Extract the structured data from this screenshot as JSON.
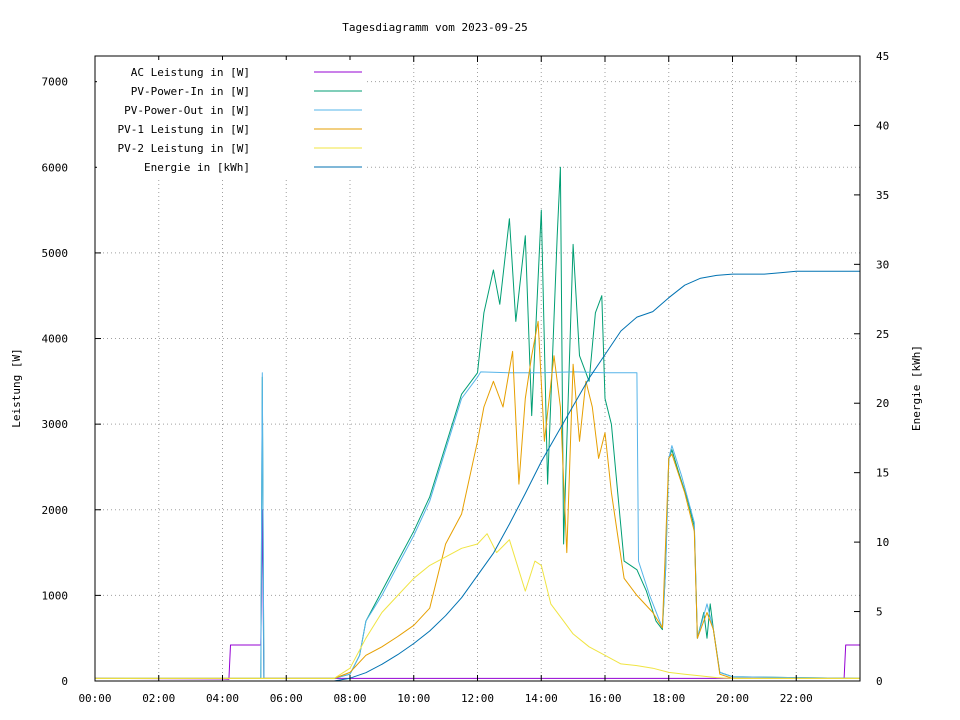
{
  "chart_data": {
    "type": "line",
    "title": "Tagesdiagramm vom 2023-09-25",
    "ylabel": "Leistung [W]",
    "y2label": "Energie [kWh]",
    "xlim": [
      0,
      24
    ],
    "ylim": [
      0,
      7300
    ],
    "y2lim": [
      0,
      45
    ],
    "x_ticks": [
      {
        "v": 0,
        "label": "00:00"
      },
      {
        "v": 2,
        "label": "02:00"
      },
      {
        "v": 4,
        "label": "04:00"
      },
      {
        "v": 6,
        "label": "06:00"
      },
      {
        "v": 8,
        "label": "08:00"
      },
      {
        "v": 10,
        "label": "10:00"
      },
      {
        "v": 12,
        "label": "12:00"
      },
      {
        "v": 14,
        "label": "14:00"
      },
      {
        "v": 16,
        "label": "16:00"
      },
      {
        "v": 18,
        "label": "18:00"
      },
      {
        "v": 20,
        "label": "20:00"
      },
      {
        "v": 22,
        "label": "22:00"
      }
    ],
    "y_ticks": [
      {
        "v": 0,
        "label": "0"
      },
      {
        "v": 1000,
        "label": "1000"
      },
      {
        "v": 2000,
        "label": "2000"
      },
      {
        "v": 3000,
        "label": "3000"
      },
      {
        "v": 4000,
        "label": "4000"
      },
      {
        "v": 5000,
        "label": "5000"
      },
      {
        "v": 6000,
        "label": "6000"
      },
      {
        "v": 7000,
        "label": "7000"
      }
    ],
    "y2_ticks": [
      {
        "v": 0,
        "label": "0"
      },
      {
        "v": 5,
        "label": "5"
      },
      {
        "v": 10,
        "label": "10"
      },
      {
        "v": 15,
        "label": "15"
      },
      {
        "v": 20,
        "label": "20"
      },
      {
        "v": 25,
        "label": "25"
      },
      {
        "v": 30,
        "label": "30"
      },
      {
        "v": 35,
        "label": "35"
      },
      {
        "v": 40,
        "label": "40"
      },
      {
        "v": 45,
        "label": "45"
      }
    ],
    "grid": true,
    "legend_position": "top-left",
    "series": [
      {
        "name": "AC Leistung in [W]",
        "color": "#9400d3",
        "axis": "y",
        "points": [
          [
            0,
            30
          ],
          [
            2,
            28
          ],
          [
            4,
            25
          ],
          [
            4.2,
            20
          ],
          [
            4.25,
            420
          ],
          [
            5.2,
            420
          ],
          [
            5.25,
            2000
          ],
          [
            5.3,
            30
          ],
          [
            7.5,
            30
          ],
          [
            8,
            30
          ],
          [
            23.5,
            30
          ],
          [
            23.55,
            420
          ],
          [
            24,
            420
          ]
        ]
      },
      {
        "name": "PV-Power-In in [W]",
        "color": "#009e73",
        "axis": "y",
        "points": [
          [
            0,
            30
          ],
          [
            5.2,
            30
          ],
          [
            5.25,
            3550
          ],
          [
            5.3,
            30
          ],
          [
            7.5,
            30
          ],
          [
            8,
            80
          ],
          [
            8.3,
            300
          ],
          [
            8.5,
            700
          ],
          [
            9,
            1050
          ],
          [
            9.5,
            1400
          ],
          [
            10,
            1750
          ],
          [
            10.5,
            2150
          ],
          [
            11,
            2750
          ],
          [
            11.5,
            3350
          ],
          [
            12,
            3600
          ],
          [
            12.2,
            4300
          ],
          [
            12.5,
            4800
          ],
          [
            12.7,
            4400
          ],
          [
            13,
            5400
          ],
          [
            13.2,
            4200
          ],
          [
            13.5,
            5200
          ],
          [
            13.7,
            3100
          ],
          [
            14,
            5500
          ],
          [
            14.2,
            2300
          ],
          [
            14.5,
            5200
          ],
          [
            14.6,
            6000
          ],
          [
            14.7,
            1600
          ],
          [
            15,
            5100
          ],
          [
            15.2,
            3800
          ],
          [
            15.5,
            3500
          ],
          [
            15.7,
            4300
          ],
          [
            15.9,
            4500
          ],
          [
            16,
            3300
          ],
          [
            16.2,
            3000
          ],
          [
            16.4,
            2200
          ],
          [
            16.6,
            1400
          ],
          [
            17,
            1300
          ],
          [
            17.3,
            1050
          ],
          [
            17.6,
            700
          ],
          [
            17.8,
            600
          ],
          [
            17.9,
            1300
          ],
          [
            18,
            2600
          ],
          [
            18.1,
            2700
          ],
          [
            18.3,
            2450
          ],
          [
            18.6,
            2100
          ],
          [
            18.8,
            1800
          ],
          [
            18.9,
            500
          ],
          [
            19.1,
            800
          ],
          [
            19.2,
            500
          ],
          [
            19.3,
            900
          ],
          [
            19.4,
            600
          ],
          [
            19.6,
            100
          ],
          [
            20,
            50
          ],
          [
            22,
            40
          ],
          [
            24,
            30
          ]
        ]
      },
      {
        "name": "PV-Power-Out in [W]",
        "color": "#56b4e9",
        "axis": "y",
        "points": [
          [
            0,
            30
          ],
          [
            5.2,
            30
          ],
          [
            5.25,
            3600
          ],
          [
            5.3,
            30
          ],
          [
            7.5,
            30
          ],
          [
            8,
            80
          ],
          [
            8.3,
            300
          ],
          [
            8.5,
            700
          ],
          [
            9,
            1000
          ],
          [
            9.5,
            1350
          ],
          [
            10,
            1700
          ],
          [
            10.5,
            2100
          ],
          [
            11,
            2700
          ],
          [
            11.5,
            3300
          ],
          [
            12,
            3550
          ],
          [
            12.1,
            3610
          ],
          [
            13,
            3600
          ],
          [
            14,
            3600
          ],
          [
            15,
            3610
          ],
          [
            16,
            3600
          ],
          [
            17,
            3600
          ],
          [
            17.05,
            1400
          ],
          [
            17.4,
            1000
          ],
          [
            17.8,
            620
          ],
          [
            17.9,
            1300
          ],
          [
            18,
            2600
          ],
          [
            18.1,
            2750
          ],
          [
            18.4,
            2400
          ],
          [
            18.8,
            1850
          ],
          [
            18.9,
            500
          ],
          [
            19.2,
            900
          ],
          [
            19.4,
            600
          ],
          [
            19.6,
            100
          ],
          [
            20,
            50
          ],
          [
            22,
            40
          ],
          [
            24,
            30
          ]
        ]
      },
      {
        "name": "PV-1 Leistung in [W]",
        "color": "#e69f00",
        "axis": "y",
        "points": [
          [
            0,
            30
          ],
          [
            7.5,
            30
          ],
          [
            8,
            100
          ],
          [
            8.5,
            300
          ],
          [
            9,
            400
          ],
          [
            9.5,
            520
          ],
          [
            10,
            650
          ],
          [
            10.5,
            850
          ],
          [
            11,
            1600
          ],
          [
            11.5,
            1950
          ],
          [
            12,
            2800
          ],
          [
            12.2,
            3200
          ],
          [
            12.5,
            3500
          ],
          [
            12.8,
            3200
          ],
          [
            13.1,
            3850
          ],
          [
            13.3,
            2300
          ],
          [
            13.5,
            3300
          ],
          [
            13.7,
            3800
          ],
          [
            13.9,
            4200
          ],
          [
            14.1,
            2800
          ],
          [
            14.4,
            3800
          ],
          [
            14.6,
            3200
          ],
          [
            14.8,
            1500
          ],
          [
            15,
            3700
          ],
          [
            15.2,
            2800
          ],
          [
            15.4,
            3500
          ],
          [
            15.6,
            3200
          ],
          [
            15.8,
            2600
          ],
          [
            16,
            2900
          ],
          [
            16.2,
            2200
          ],
          [
            16.4,
            1700
          ],
          [
            16.6,
            1200
          ],
          [
            17,
            1000
          ],
          [
            17.5,
            800
          ],
          [
            17.8,
            620
          ],
          [
            18,
            2600
          ],
          [
            18.1,
            2650
          ],
          [
            18.5,
            2200
          ],
          [
            18.8,
            1750
          ],
          [
            18.9,
            500
          ],
          [
            19.2,
            800
          ],
          [
            19.4,
            600
          ],
          [
            19.6,
            80
          ],
          [
            20,
            30
          ],
          [
            24,
            30
          ]
        ]
      },
      {
        "name": "PV-2 Leistung in [W]",
        "color": "#f0e442",
        "axis": "y",
        "points": [
          [
            0,
            30
          ],
          [
            7.5,
            30
          ],
          [
            8,
            150
          ],
          [
            8.5,
            500
          ],
          [
            9,
            800
          ],
          [
            9.5,
            1000
          ],
          [
            10,
            1200
          ],
          [
            10.5,
            1350
          ],
          [
            11,
            1450
          ],
          [
            11.5,
            1550
          ],
          [
            12,
            1600
          ],
          [
            12.3,
            1720
          ],
          [
            12.6,
            1500
          ],
          [
            13,
            1650
          ],
          [
            13.5,
            1050
          ],
          [
            13.8,
            1400
          ],
          [
            14,
            1350
          ],
          [
            14.3,
            900
          ],
          [
            14.7,
            700
          ],
          [
            15,
            550
          ],
          [
            15.5,
            400
          ],
          [
            16,
            300
          ],
          [
            16.5,
            200
          ],
          [
            17,
            180
          ],
          [
            17.5,
            150
          ],
          [
            18,
            100
          ],
          [
            18.5,
            80
          ],
          [
            19,
            60
          ],
          [
            19.5,
            40
          ],
          [
            20,
            30
          ],
          [
            24,
            30
          ]
        ]
      },
      {
        "name": "Energie in [kWh]",
        "color": "#0072b2",
        "axis": "y2",
        "points": [
          [
            0,
            0
          ],
          [
            7.5,
            0
          ],
          [
            8,
            0.2
          ],
          [
            8.5,
            0.6
          ],
          [
            9,
            1.2
          ],
          [
            9.5,
            1.9
          ],
          [
            10,
            2.7
          ],
          [
            10.5,
            3.6
          ],
          [
            11,
            4.7
          ],
          [
            11.5,
            6.0
          ],
          [
            12,
            7.6
          ],
          [
            12.5,
            9.2
          ],
          [
            13,
            11.3
          ],
          [
            13.5,
            13.5
          ],
          [
            14,
            15.8
          ],
          [
            14.5,
            17.8
          ],
          [
            15,
            19.8
          ],
          [
            15.5,
            21.8
          ],
          [
            16,
            23.5
          ],
          [
            16.5,
            25.2
          ],
          [
            17,
            26.2
          ],
          [
            17.5,
            26.6
          ],
          [
            18,
            27.6
          ],
          [
            18.5,
            28.5
          ],
          [
            19,
            29.0
          ],
          [
            19.5,
            29.2
          ],
          [
            20,
            29.3
          ],
          [
            21,
            29.3
          ],
          [
            21.5,
            29.4
          ],
          [
            22,
            29.5
          ],
          [
            24,
            29.5
          ]
        ]
      }
    ]
  }
}
